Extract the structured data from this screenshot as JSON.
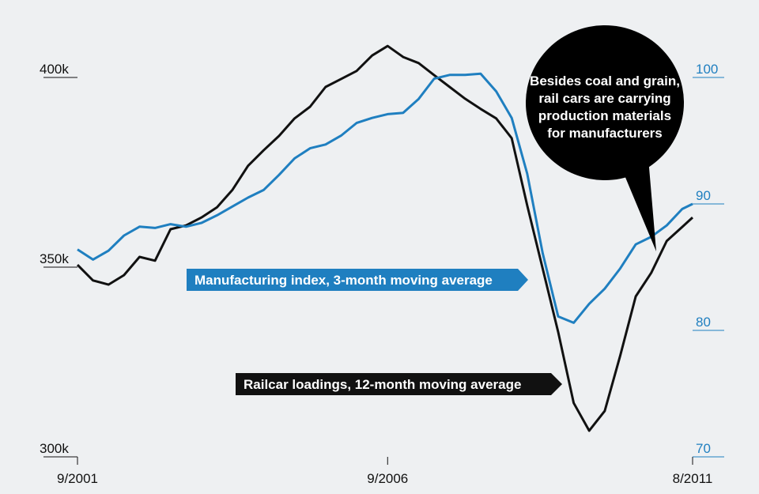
{
  "chart_data": {
    "type": "line",
    "x": [
      "2001-09",
      "2001-12",
      "2002-03",
      "2002-06",
      "2002-09",
      "2002-12",
      "2003-03",
      "2003-06",
      "2003-09",
      "2003-12",
      "2004-03",
      "2004-06",
      "2004-09",
      "2004-12",
      "2005-03",
      "2005-06",
      "2005-09",
      "2005-12",
      "2006-03",
      "2006-06",
      "2006-09",
      "2006-12",
      "2007-03",
      "2007-06",
      "2007-09",
      "2007-12",
      "2008-03",
      "2008-06",
      "2008-09",
      "2008-12",
      "2009-03",
      "2009-06",
      "2009-09",
      "2009-12",
      "2010-03",
      "2010-06",
      "2010-09",
      "2010-12",
      "2011-03",
      "2011-06",
      "2011-08"
    ],
    "xlim": [
      "2001-09",
      "2011-08"
    ],
    "xticks": [
      {
        "value": "2001-09",
        "label": "9/2001"
      },
      {
        "value": "2006-09",
        "label": "9/2006"
      },
      {
        "value": "2011-08",
        "label": "8/2011"
      }
    ],
    "series": [
      {
        "name": "Railcar loadings, 12-month moving average",
        "color": "#111111",
        "axis": "y",
        "values": [
          350.6,
          346.5,
          345.4,
          347.9,
          352.7,
          351.7,
          360,
          361,
          363.1,
          365.8,
          370.4,
          376.7,
          380.8,
          384.6,
          389.2,
          392.3,
          397.5,
          399.6,
          401.7,
          405.8,
          408.3,
          405.4,
          403.8,
          400.6,
          397.5,
          394.4,
          391.7,
          389.2,
          384,
          366.3,
          349.6,
          332.9,
          314.2,
          306.9,
          312.1,
          326.7,
          342.3,
          348.5,
          356.9,
          360.6,
          363.1
        ]
      },
      {
        "name": "Manufacturing index, 3-month moving average",
        "color": "#1f7fc0",
        "axis": "y2",
        "values": [
          86.4,
          85.6,
          86.3,
          87.5,
          88.2,
          88.1,
          88.4,
          88.2,
          88.5,
          89.1,
          89.8,
          90.5,
          91.1,
          92.3,
          93.6,
          94.4,
          94.7,
          95.4,
          96.4,
          96.8,
          97.1,
          97.2,
          98.3,
          99.9,
          100.2,
          100.2,
          100.3,
          98.9,
          96.8,
          92.4,
          86.1,
          81.1,
          80.6,
          82.1,
          83.3,
          84.9,
          86.8,
          87.4,
          88.3,
          89.6,
          90
        ]
      }
    ],
    "ylim": [
      300,
      400
    ],
    "yticks": [
      {
        "value": 300,
        "label": "300k"
      },
      {
        "value": 350,
        "label": "350k"
      },
      {
        "value": 400,
        "label": "400k"
      }
    ],
    "y2lim": [
      70,
      100
    ],
    "y2ticks": [
      70,
      80,
      90,
      100
    ],
    "y2color": "#1f7fc0",
    "annotation": [
      "Besides coal and grain,",
      "rail cars are carrying",
      "production materials",
      "for manufacturers"
    ]
  }
}
